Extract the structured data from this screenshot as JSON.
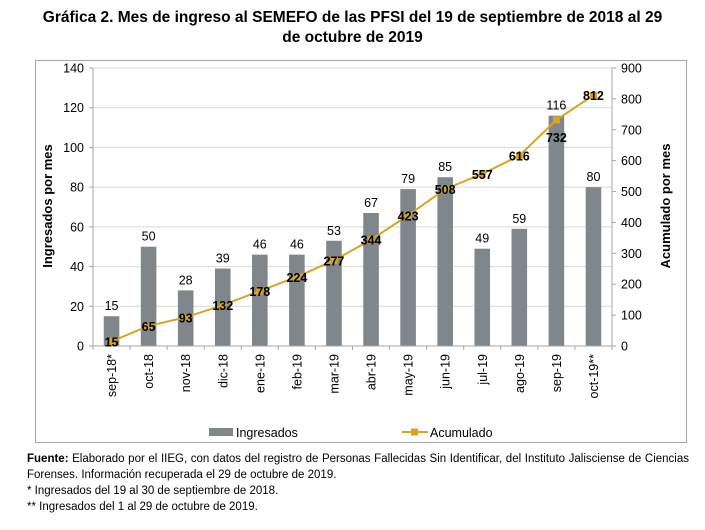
{
  "title_line1": "Gráfica 2. Mes de ingreso al SEMEFO de las PFSI del 19 de septiembre de 2018 al 29",
  "title_line2": "de octubre de 2019",
  "footnotes": {
    "source_label": "Fuente:",
    "source_text": " Elaborado por el IIEG, con datos del registro de Personas Fallecidas Sin Identificar, del Instituto Jalisciense de Ciencias Forenses. Información recuperada el 29 de octubre de 2019.",
    "note1": "* Ingresados del 19 al 30 de septiembre de 2018.",
    "note2": "** Ingresados del 1 al 29 de octubre de 2019."
  },
  "chart_data": {
    "type": "bar",
    "title": "Gráfica 2. Mes de ingreso al SEMEFO de las PFSI del 19 de septiembre de 2018 al 29 de octubre de 2019",
    "categories": [
      "sep-18*",
      "oct-18",
      "nov-18",
      "dic-18",
      "ene-19",
      "feb-19",
      "mar-19",
      "abr-19",
      "may-19",
      "jun-19",
      "jul-19",
      "ago-19",
      "sep-19",
      "oct-19**"
    ],
    "series": [
      {
        "name": "Ingresados",
        "type": "bar",
        "axis": "left",
        "color": "#7f878c",
        "values": [
          15,
          50,
          28,
          39,
          46,
          46,
          53,
          67,
          79,
          85,
          49,
          59,
          116,
          80
        ]
      },
      {
        "name": "Acumulado",
        "type": "line",
        "axis": "right",
        "color": "#d9a520",
        "values": [
          15,
          65,
          93,
          132,
          178,
          224,
          277,
          344,
          423,
          508,
          557,
          616,
          732,
          812
        ]
      }
    ],
    "xlabel": "",
    "ylabel": "Ingresados por mes",
    "y2label": "Acumulado por mes",
    "ylim": [
      0,
      140
    ],
    "yticks": [
      0,
      20,
      40,
      60,
      80,
      100,
      120,
      140
    ],
    "y2lim": [
      0,
      900
    ],
    "y2ticks": [
      0,
      100,
      200,
      300,
      400,
      500,
      600,
      700,
      800,
      900
    ],
    "grid": true,
    "legend": "bottom",
    "gridline_color": "#d9d9d9"
  }
}
